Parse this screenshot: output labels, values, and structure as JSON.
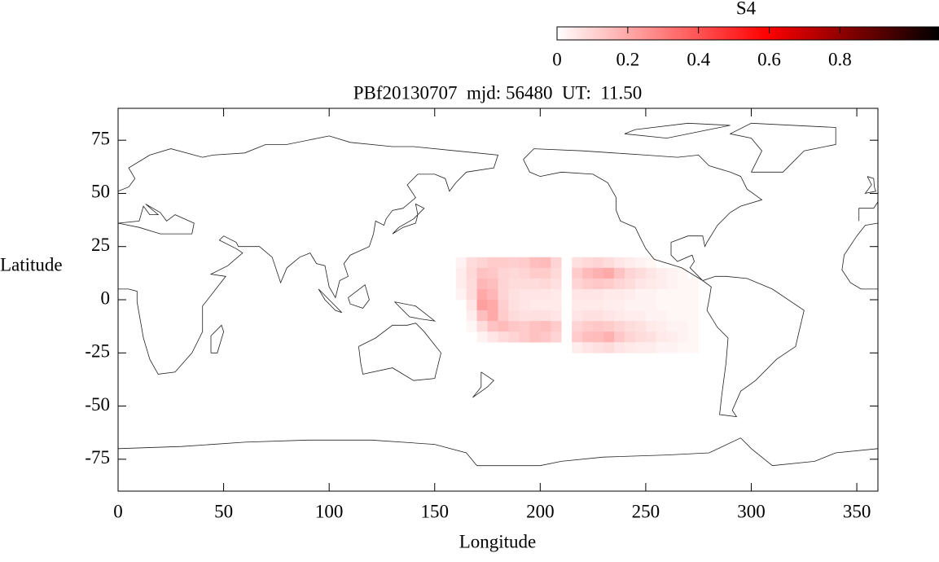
{
  "chart_data": {
    "type": "heatmap",
    "title": "PBf20130707  mjd: 56480  UT:  11.50",
    "x_label": "Longitude",
    "y_label": "Latitude",
    "xlim": [
      0,
      360
    ],
    "ylim": [
      -90,
      90
    ],
    "xticks": [
      0,
      50,
      100,
      150,
      200,
      250,
      300,
      350
    ],
    "yticks": [
      -75,
      -50,
      -25,
      0,
      25,
      50,
      75
    ],
    "colorbar": {
      "label": "S4",
      "clim": [
        0,
        1.08
      ],
      "ticks": [
        0,
        0.2,
        0.4,
        0.6,
        0.8
      ]
    },
    "x": [
      162.5,
      167.5,
      172.5,
      177.5,
      182.5,
      187.5,
      192.5,
      197.5,
      202.5,
      207.5,
      212.5,
      217.5,
      222.5,
      227.5,
      232.5,
      237.5,
      242.5,
      247.5,
      252.5,
      257.5,
      262.5,
      267.5,
      272.5
    ],
    "y": [
      17.5,
      12.5,
      7.5,
      2.5,
      -2.5,
      -7.5,
      -12.5,
      -17.5,
      -22.5
    ],
    "z": [
      [
        0.03,
        0.08,
        0.1,
        0.12,
        0.12,
        0.11,
        0.12,
        0.15,
        0.16,
        0.1,
        null,
        0.07,
        0.09,
        0.1,
        0.08,
        0.06,
        0.04,
        0.03,
        0.02,
        null,
        null,
        null,
        null
      ],
      [
        0.04,
        0.09,
        0.14,
        0.13,
        0.1,
        0.09,
        0.1,
        0.12,
        0.12,
        0.09,
        null,
        0.12,
        0.16,
        0.18,
        0.2,
        0.14,
        0.1,
        0.08,
        0.06,
        0.04,
        0.03,
        0.02,
        null
      ],
      [
        0.04,
        0.08,
        0.17,
        0.15,
        0.1,
        0.08,
        0.08,
        0.08,
        0.09,
        0.07,
        null,
        0.1,
        0.12,
        0.13,
        0.12,
        0.1,
        0.08,
        0.06,
        0.05,
        0.04,
        0.03,
        0.02,
        0.02
      ],
      [
        0.03,
        0.08,
        0.2,
        0.17,
        0.1,
        0.07,
        0.06,
        0.06,
        0.06,
        0.05,
        null,
        0.06,
        0.06,
        0.06,
        0.05,
        0.05,
        0.04,
        0.03,
        0.03,
        0.02,
        0.02,
        0.02,
        0.02
      ],
      [
        null,
        0.06,
        0.22,
        0.2,
        0.11,
        0.07,
        0.06,
        0.05,
        0.05,
        0.05,
        null,
        0.05,
        0.05,
        0.05,
        0.04,
        0.04,
        0.03,
        0.03,
        0.03,
        0.02,
        0.02,
        0.02,
        0.02
      ],
      [
        null,
        0.04,
        0.15,
        0.2,
        0.12,
        0.08,
        0.07,
        0.07,
        0.07,
        0.06,
        null,
        0.06,
        0.07,
        0.07,
        0.06,
        0.05,
        0.04,
        0.04,
        0.03,
        0.03,
        0.02,
        0.02,
        0.02
      ],
      [
        null,
        0.02,
        0.08,
        0.14,
        0.16,
        0.13,
        0.12,
        0.14,
        0.15,
        0.12,
        null,
        0.1,
        0.12,
        0.13,
        0.12,
        0.1,
        0.08,
        0.07,
        0.05,
        0.04,
        0.03,
        0.03,
        0.02
      ],
      [
        null,
        null,
        0.03,
        0.06,
        0.08,
        0.1,
        0.12,
        0.14,
        0.13,
        0.1,
        null,
        0.12,
        0.15,
        0.16,
        0.18,
        0.13,
        0.1,
        0.08,
        0.07,
        0.05,
        0.04,
        0.03,
        0.02
      ],
      [
        null,
        null,
        null,
        null,
        null,
        null,
        null,
        null,
        null,
        null,
        null,
        0.04,
        0.06,
        0.07,
        0.08,
        0.06,
        0.05,
        0.04,
        0.04,
        0.03,
        0.03,
        0.02,
        0.02
      ]
    ]
  }
}
